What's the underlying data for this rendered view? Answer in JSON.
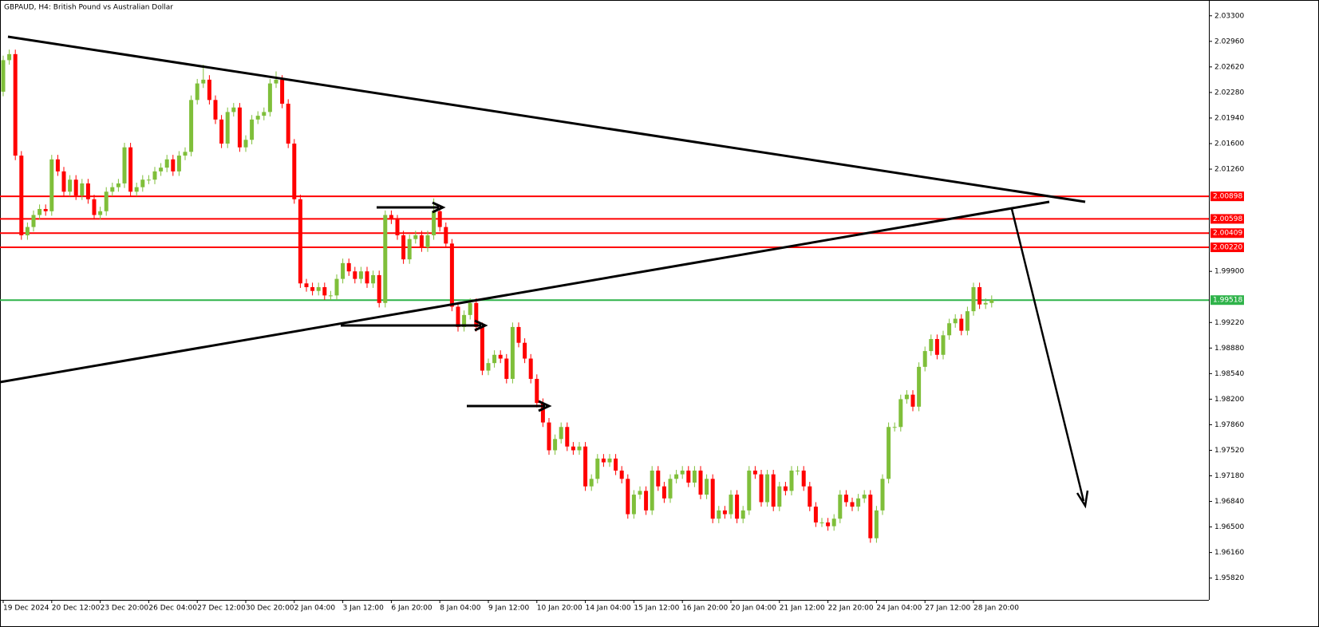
{
  "chart_data": {
    "type": "candlestick",
    "title": "GBPAUD, H4:  British Pound vs Australian Dollar",
    "up_color": "#7fbf3a",
    "down_color": "#ff0000",
    "ylim": [
      1.9553,
      2.0351
    ],
    "yticks": [
      {
        "value": 2.033,
        "label": "2.03300"
      },
      {
        "value": 2.0296,
        "label": "2.02960"
      },
      {
        "value": 2.0262,
        "label": "2.02620"
      },
      {
        "value": 2.0228,
        "label": "2.02280"
      },
      {
        "value": 2.0194,
        "label": "2.01940"
      },
      {
        "value": 2.016,
        "label": "2.01600"
      },
      {
        "value": 2.0126,
        "label": "2.01260"
      },
      {
        "value": 1.999,
        "label": "1.99900"
      },
      {
        "value": 1.9922,
        "label": "1.99220"
      },
      {
        "value": 1.9888,
        "label": "1.98880"
      },
      {
        "value": 1.9854,
        "label": "1.98540"
      },
      {
        "value": 1.982,
        "label": "1.98200"
      },
      {
        "value": 1.9786,
        "label": "1.97860"
      },
      {
        "value": 1.9752,
        "label": "1.97520"
      },
      {
        "value": 1.9718,
        "label": "1.97180"
      },
      {
        "value": 1.9684,
        "label": "1.96840"
      },
      {
        "value": 1.965,
        "label": "1.96500"
      },
      {
        "value": 1.9616,
        "label": "1.96160"
      },
      {
        "value": 1.9582,
        "label": "1.95820"
      }
    ],
    "levels": [
      {
        "value": 2.00898,
        "label": "2.00898",
        "color": "#ff0000"
      },
      {
        "value": 2.00598,
        "label": "2.00598",
        "color": "#ff0000"
      },
      {
        "value": 2.00409,
        "label": "2.00409",
        "color": "#ff0000"
      },
      {
        "value": 2.0022,
        "label": "2.00220",
        "color": "#ff0000"
      },
      {
        "value": 1.99518,
        "label": "1.99518",
        "color": "#2fb34a"
      }
    ],
    "categories": [
      "19 Dec 2024",
      null,
      null,
      null,
      null,
      null,
      null,
      null,
      "20 Dec 12:00",
      null,
      null,
      null,
      null,
      null,
      null,
      null,
      "23 Dec 20:00",
      null,
      null,
      null,
      null,
      null,
      null,
      null,
      "26 Dec 04:00",
      null,
      null,
      null,
      null,
      null,
      null,
      null,
      "27 Dec 12:00",
      null,
      null,
      null,
      null,
      null,
      null,
      null,
      "30 Dec 20:00",
      null,
      null,
      null,
      null,
      null,
      null,
      null,
      "2 Jan 04:00",
      null,
      null,
      null,
      null,
      null,
      null,
      null,
      "3 Jan 12:00",
      null,
      null,
      null,
      null,
      null,
      null,
      null,
      "6 Jan 20:00",
      null,
      null,
      null,
      null,
      null,
      null,
      null,
      "8 Jan 04:00",
      null,
      null,
      null,
      null,
      null,
      null,
      null,
      "9 Jan 12:00",
      null,
      null,
      null,
      null,
      null,
      null,
      null,
      "10 Jan 20:00",
      null,
      null,
      null,
      null,
      null,
      null,
      null,
      "14 Jan 04:00",
      null,
      null,
      null,
      null,
      null,
      null,
      null,
      "15 Jan 12:00",
      null,
      null,
      null,
      null,
      null,
      null,
      null,
      "16 Jan 20:00",
      null,
      null,
      null,
      null,
      null,
      null,
      null,
      "20 Jan 04:00",
      null,
      null,
      null,
      null,
      null,
      null,
      null,
      "21 Jan 12:00",
      null,
      null,
      null,
      null,
      null,
      null,
      null,
      "22 Jan 20:00",
      null,
      null,
      null,
      null,
      null,
      null,
      null,
      "24 Jan 04:00",
      null,
      null,
      null,
      null,
      null,
      null,
      null,
      "27 Jan 12:00",
      null,
      null,
      null,
      null,
      null,
      null,
      null,
      "28 Jan 20:00",
      null,
      null,
      null
    ],
    "open": [
      2.0229,
      2.0271,
      2.0279,
      2.0144,
      2.0038,
      2.0049,
      2.0065,
      2.0073,
      2.007,
      2.0139,
      2.0123,
      2.0096,
      2.0112,
      2.0091,
      2.0107,
      2.0086,
      2.0065,
      2.007,
      2.0096,
      2.0102,
      2.0107,
      2.0155,
      2.0096,
      2.0102,
      2.0112,
      2.0112,
      2.0123,
      2.0128,
      2.0139,
      2.0123,
      2.0144,
      2.0149,
      2.0218,
      2.024,
      2.0245,
      2.0218,
      2.0192,
      2.016,
      2.0202,
      2.0208,
      2.0155,
      2.0165,
      2.0192,
      2.0197,
      2.0202,
      2.024,
      2.0245,
      2.0213,
      2.016,
      2.0086,
      1.9974,
      1.9969,
      1.9964,
      1.9969,
      1.9958,
      1.9958,
      1.998,
      2.0001,
      1.999,
      1.998,
      1.999,
      1.9974,
      1.9985,
      1.9948,
      2.0065,
      2.0059,
      2.0038,
      2.0006,
      2.0033,
      2.0038,
      2.0022,
      2.0038,
      2.007,
      2.0049,
      2.0027,
      1.9943,
      1.9916,
      1.9932,
      1.9948,
      1.9916,
      1.9858,
      1.9868,
      1.9879,
      1.9874,
      1.9847,
      1.9916,
      1.9895,
      1.9874,
      1.9847,
      1.9815,
      1.9789,
      1.9752,
      1.9767,
      1.9783,
      1.9757,
      1.9752,
      1.9757,
      1.9704,
      1.9714,
      1.9741,
      1.9736,
      1.9741,
      1.9725,
      1.9714,
      1.9667,
      1.9693,
      1.9698,
      1.9672,
      1.9725,
      1.9704,
      1.9688,
      1.9714,
      1.972,
      1.9725,
      1.9709,
      1.9725,
      1.9693,
      1.9714,
      1.9661,
      1.9672,
      1.9667,
      1.9693,
      1.9661,
      1.9672,
      1.9725,
      1.972,
      1.9683,
      1.972,
      1.9677,
      1.9704,
      1.9698,
      1.9725,
      1.9725,
      1.9704,
      1.9677,
      1.9656,
      1.9656,
      1.9651,
      1.9661,
      1.9693,
      1.9683,
      1.9677,
      1.9688,
      1.9693,
      1.9635,
      1.9672,
      1.9714,
      1.9783,
      1.9783,
      1.982,
      1.9826,
      1.981,
      1.9863,
      1.9884,
      1.99,
      1.9879,
      1.9905,
      1.9921,
      1.9927,
      1.9911,
      1.9937,
      1.9969,
      1.9946,
      1.9948
    ],
    "high": [
      2.0277,
      2.0285,
      2.0285,
      2.015,
      2.0055,
      2.0071,
      2.0079,
      2.0079,
      2.0145,
      2.0145,
      2.0129,
      2.0118,
      2.0118,
      2.0113,
      2.0113,
      2.0092,
      2.0076,
      2.0102,
      2.0108,
      2.0113,
      2.0161,
      2.0161,
      2.0108,
      2.0118,
      2.0118,
      2.0129,
      2.0134,
      2.0145,
      2.0145,
      2.015,
      2.0155,
      2.0224,
      2.0246,
      2.0265,
      2.0251,
      2.0224,
      2.0198,
      2.0208,
      2.0214,
      2.0214,
      2.0171,
      2.0198,
      2.0203,
      2.0208,
      2.0246,
      2.0256,
      2.0251,
      2.0219,
      2.0166,
      2.0092,
      1.998,
      1.9975,
      1.9975,
      1.9975,
      1.9964,
      1.9986,
      2.0007,
      2.0007,
      1.9996,
      1.9996,
      1.9996,
      1.9991,
      1.9991,
      2.0071,
      2.0071,
      2.0065,
      2.0044,
      2.0039,
      2.0044,
      2.0044,
      2.0044,
      2.0087,
      2.0076,
      2.0055,
      2.0033,
      1.9949,
      1.9938,
      1.9954,
      1.9954,
      1.9922,
      1.9874,
      1.9885,
      1.9885,
      1.988,
      1.9922,
      1.9922,
      1.9901,
      1.988,
      1.9853,
      1.9821,
      1.9795,
      1.9773,
      1.9789,
      1.9789,
      1.9763,
      1.9763,
      1.9763,
      1.972,
      1.9747,
      1.9747,
      1.9747,
      1.9747,
      1.9731,
      1.972,
      1.9699,
      1.9704,
      1.9704,
      1.9731,
      1.9731,
      1.971,
      1.972,
      1.9726,
      1.9731,
      1.9731,
      1.9731,
      1.9731,
      1.972,
      1.972,
      1.9678,
      1.9678,
      1.9699,
      1.9699,
      1.9678,
      1.9731,
      1.9731,
      1.9726,
      1.9726,
      1.9726,
      1.971,
      1.971,
      1.9731,
      1.9731,
      1.9731,
      1.971,
      1.9683,
      1.9662,
      1.9662,
      1.9667,
      1.9699,
      1.9699,
      1.9689,
      1.9694,
      1.9699,
      1.9699,
      1.9678,
      1.972,
      1.9789,
      1.9789,
      1.9826,
      1.9832,
      1.9832,
      1.9869,
      1.989,
      1.9906,
      1.9906,
      1.9911,
      1.9927,
      1.9933,
      1.9933,
      1.9943,
      1.9975,
      1.9975,
      1.9954,
      1.9958
    ],
    "low": [
      2.0223,
      2.0265,
      2.0138,
      2.0032,
      2.0032,
      2.0043,
      2.0059,
      2.0064,
      2.0064,
      2.0117,
      2.009,
      2.009,
      2.0085,
      2.0085,
      2.008,
      2.0059,
      2.0059,
      2.0064,
      2.009,
      2.0096,
      2.0101,
      2.009,
      2.009,
      2.0096,
      2.0106,
      2.0106,
      2.0117,
      2.0122,
      2.0117,
      2.0117,
      2.0138,
      2.0143,
      2.0212,
      2.0234,
      2.0212,
      2.0186,
      2.0154,
      2.0154,
      2.0196,
      2.0149,
      2.0149,
      2.0159,
      2.0186,
      2.0191,
      2.0196,
      2.0234,
      2.0207,
      2.0154,
      2.008,
      1.9968,
      1.9963,
      1.9958,
      1.9958,
      1.9952,
      1.9952,
      1.9952,
      1.9974,
      1.9984,
      1.9974,
      1.9974,
      1.9968,
      1.9968,
      1.9942,
      1.9942,
      2.0053,
      2.0032,
      2.0,
      2.0,
      2.0027,
      2.0016,
      2.0016,
      2.0032,
      2.0043,
      2.0021,
      1.9937,
      1.991,
      1.991,
      1.9926,
      1.991,
      1.9852,
      1.9852,
      1.9862,
      1.9868,
      1.9841,
      1.9841,
      1.9889,
      1.9868,
      1.9841,
      1.9809,
      1.9783,
      1.9746,
      1.9746,
      1.9761,
      1.9751,
      1.9746,
      1.9746,
      1.9698,
      1.9698,
      1.9708,
      1.973,
      1.973,
      1.9719,
      1.9708,
      1.9661,
      1.9661,
      1.9687,
      1.9666,
      1.9666,
      1.9698,
      1.9682,
      1.9682,
      1.9708,
      1.9714,
      1.9703,
      1.9703,
      1.9687,
      1.9687,
      1.9655,
      1.9655,
      1.9661,
      1.9661,
      1.9655,
      1.9655,
      1.9666,
      1.9714,
      1.9677,
      1.9677,
      1.9671,
      1.9671,
      1.9692,
      1.9692,
      1.9719,
      1.9698,
      1.9671,
      1.965,
      1.965,
      1.9645,
      1.9645,
      1.9655,
      1.9677,
      1.9671,
      1.9671,
      1.9682,
      1.9629,
      1.9629,
      1.9666,
      1.9708,
      1.9777,
      1.9777,
      1.9814,
      1.9804,
      1.9804,
      1.9857,
      1.9878,
      1.9873,
      1.9873,
      1.9899,
      1.9915,
      1.9905,
      1.9905,
      1.9931,
      1.994,
      1.994,
      1.9942
    ],
    "close": [
      2.0271,
      2.0279,
      2.0144,
      2.0038,
      2.0049,
      2.0065,
      2.0073,
      2.007,
      2.0139,
      2.0123,
      2.0096,
      2.0112,
      2.0091,
      2.0107,
      2.0086,
      2.0065,
      2.007,
      2.0096,
      2.0102,
      2.0107,
      2.0155,
      2.0096,
      2.0102,
      2.0112,
      2.0112,
      2.0123,
      2.0128,
      2.0139,
      2.0123,
      2.0144,
      2.0149,
      2.0218,
      2.024,
      2.0245,
      2.0218,
      2.0192,
      2.016,
      2.0202,
      2.0208,
      2.0155,
      2.0165,
      2.0192,
      2.0197,
      2.0202,
      2.024,
      2.0245,
      2.0213,
      2.016,
      2.0086,
      1.9974,
      1.9969,
      1.9964,
      1.9969,
      1.9958,
      1.9958,
      1.998,
      2.0001,
      1.999,
      1.998,
      1.999,
      1.9974,
      1.9985,
      1.9948,
      2.0065,
      2.0059,
      2.0038,
      2.0006,
      2.0033,
      2.0038,
      2.0022,
      2.0038,
      2.007,
      2.0049,
      2.0027,
      1.9943,
      1.9916,
      1.9932,
      1.9948,
      1.9916,
      1.9858,
      1.9868,
      1.9879,
      1.9874,
      1.9847,
      1.9916,
      1.9895,
      1.9874,
      1.9847,
      1.9815,
      1.9789,
      1.9752,
      1.9767,
      1.9783,
      1.9757,
      1.9752,
      1.9757,
      1.9704,
      1.9714,
      1.9741,
      1.9736,
      1.9741,
      1.9725,
      1.9714,
      1.9667,
      1.9693,
      1.9698,
      1.9672,
      1.9725,
      1.9704,
      1.9688,
      1.9714,
      1.972,
      1.9725,
      1.9709,
      1.9725,
      1.9693,
      1.9714,
      1.9661,
      1.9672,
      1.9667,
      1.9693,
      1.9661,
      1.9672,
      1.9725,
      1.972,
      1.9683,
      1.972,
      1.9677,
      1.9704,
      1.9698,
      1.9725,
      1.9725,
      1.9704,
      1.9677,
      1.9656,
      1.9656,
      1.9651,
      1.9661,
      1.9693,
      1.9683,
      1.9677,
      1.9688,
      1.9693,
      1.9635,
      1.9672,
      1.9714,
      1.9783,
      1.9783,
      1.982,
      1.9826,
      1.981,
      1.9863,
      1.9884,
      1.99,
      1.9879,
      1.9905,
      1.9921,
      1.9927,
      1.9911,
      1.9937,
      1.9969,
      1.9946,
      1.9948,
      1.9952
    ]
  }
}
